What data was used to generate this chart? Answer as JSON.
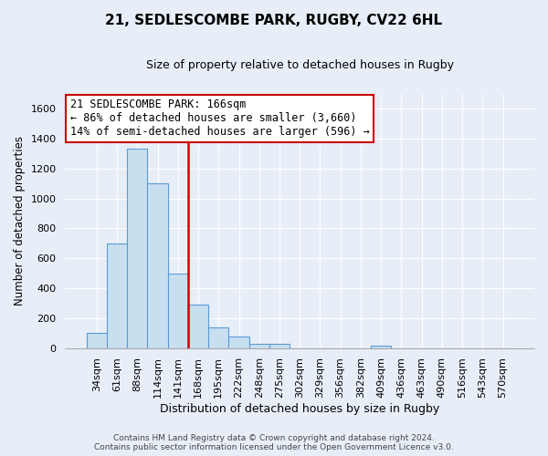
{
  "title": "21, SEDLESCOMBE PARK, RUGBY, CV22 6HL",
  "subtitle": "Size of property relative to detached houses in Rugby",
  "xlabel": "Distribution of detached houses by size in Rugby",
  "ylabel": "Number of detached properties",
  "bar_labels": [
    "34sqm",
    "61sqm",
    "88sqm",
    "114sqm",
    "141sqm",
    "168sqm",
    "195sqm",
    "222sqm",
    "248sqm",
    "275sqm",
    "302sqm",
    "329sqm",
    "356sqm",
    "382sqm",
    "409sqm",
    "436sqm",
    "463sqm",
    "490sqm",
    "516sqm",
    "543sqm",
    "570sqm"
  ],
  "bar_values": [
    100,
    700,
    1330,
    1100,
    500,
    290,
    140,
    75,
    28,
    28,
    0,
    0,
    0,
    0,
    18,
    0,
    0,
    0,
    0,
    0,
    0
  ],
  "bar_color": "#c8dff0",
  "bar_edge_color": "#5b9bd5",
  "vline_color": "#cc0000",
  "annotation_title": "21 SEDLESCOMBE PARK: 166sqm",
  "annotation_line1": "← 86% of detached houses are smaller (3,660)",
  "annotation_line2": "14% of semi-detached houses are larger (596) →",
  "annotation_box_facecolor": "#ffffff",
  "annotation_box_edgecolor": "#cc0000",
  "ylim": [
    0,
    1700
  ],
  "yticks": [
    0,
    200,
    400,
    600,
    800,
    1000,
    1200,
    1400,
    1600
  ],
  "footer1": "Contains HM Land Registry data © Crown copyright and database right 2024.",
  "footer2": "Contains public sector information licensed under the Open Government Licence v3.0.",
  "bg_color": "#e8eef8",
  "plot_bg_color": "#e8eef8",
  "grid_color": "#ffffff",
  "title_fontsize": 11,
  "subtitle_fontsize": 9,
  "xlabel_fontsize": 9,
  "ylabel_fontsize": 8.5,
  "tick_fontsize": 8,
  "annot_fontsize": 8.5,
  "footer_fontsize": 6.5
}
